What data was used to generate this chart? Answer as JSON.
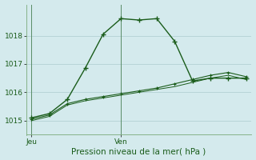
{
  "xlabel": "Pression niveau de la mer( hPa )",
  "bg_color": "#d4eaed",
  "grid_color": "#b8d4d8",
  "line_color": "#1a5c1a",
  "ylim": [
    1014.5,
    1019.1
  ],
  "yticks": [
    1015,
    1016,
    1017,
    1018
  ],
  "series1_x": [
    0,
    1,
    2,
    3,
    4,
    5,
    6,
    7,
    8,
    9,
    10,
    11,
    12
  ],
  "series1_y": [
    1015.1,
    1015.25,
    1015.75,
    1016.85,
    1018.05,
    1018.6,
    1018.55,
    1018.6,
    1017.8,
    1016.4,
    1016.5,
    1016.5,
    1016.5
  ],
  "series2_x": [
    0,
    1,
    2,
    3,
    4,
    5,
    6,
    7,
    8,
    9,
    10,
    11,
    12
  ],
  "series2_y": [
    1015.05,
    1015.2,
    1015.6,
    1015.75,
    1015.85,
    1015.95,
    1016.05,
    1016.15,
    1016.3,
    1016.45,
    1016.6,
    1016.7,
    1016.55
  ],
  "series3_x": [
    0,
    1,
    2,
    3,
    4,
    5,
    6,
    7,
    8,
    9,
    10,
    11,
    12
  ],
  "series3_y": [
    1015.0,
    1015.15,
    1015.55,
    1015.7,
    1015.8,
    1015.9,
    1016.0,
    1016.1,
    1016.2,
    1016.35,
    1016.5,
    1016.6,
    1016.45
  ],
  "day_labels": [
    [
      "Jeu",
      0
    ],
    [
      "Ven",
      5
    ]
  ],
  "vline_x": [
    0,
    5
  ],
  "figsize": [
    3.2,
    2.0
  ],
  "dpi": 100
}
